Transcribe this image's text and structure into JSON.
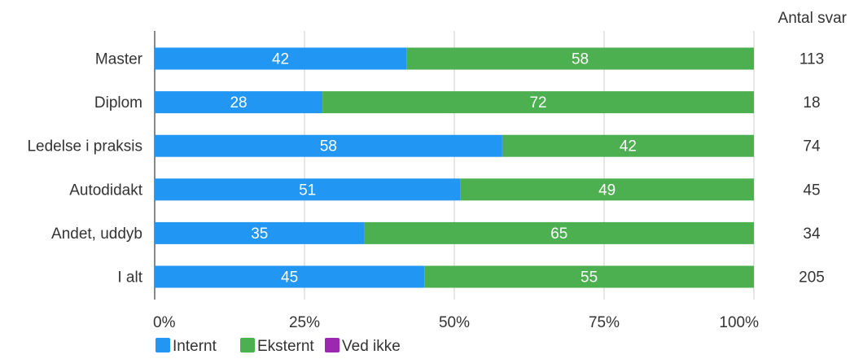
{
  "chart_data": {
    "type": "bar",
    "orientation": "horizontal",
    "stacked": true,
    "percent_scale": true,
    "categories": [
      "Master",
      "Diplom",
      "Ledelse i praksis",
      "Autodidakt",
      "Andet, uddyb",
      "I alt"
    ],
    "series": [
      {
        "name": "Internt",
        "color": "#2196f3",
        "values": [
          42,
          28,
          58,
          51,
          35,
          45
        ]
      },
      {
        "name": "Eksternt",
        "color": "#4caf50",
        "values": [
          58,
          72,
          42,
          49,
          65,
          55
        ]
      },
      {
        "name": "Ved ikke",
        "color": "#9c27b0",
        "values": [
          0,
          0,
          0,
          0,
          0,
          0
        ]
      }
    ],
    "x_ticks": [
      "0%",
      "25%",
      "50%",
      "75%",
      "100%"
    ],
    "xlim": [
      0,
      100
    ],
    "grid": true,
    "legend": "bottom-left",
    "side_column": {
      "header": "Antal svar",
      "values": [
        "113",
        "18",
        "74",
        "45",
        "34",
        "205"
      ]
    }
  }
}
